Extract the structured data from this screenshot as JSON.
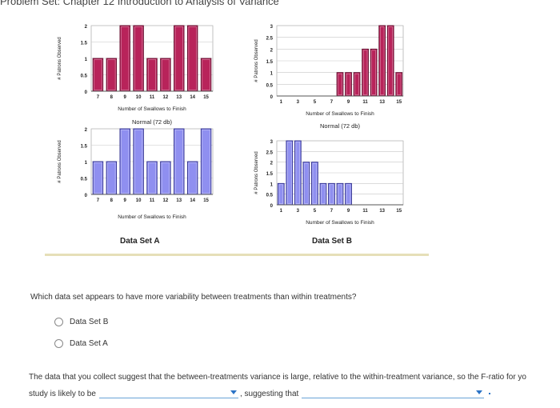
{
  "header": {
    "title": "Problem Set: Chapter 12 Introduction to Analysis of Variance"
  },
  "chart_data": [
    {
      "id": "a-skewed",
      "type": "bar",
      "x": [
        7,
        8,
        9,
        10,
        11,
        12,
        13,
        14,
        15
      ],
      "values": [
        1,
        1,
        2,
        2,
        1,
        1,
        2,
        2,
        1
      ],
      "xticks": [
        "7",
        "8",
        "9",
        "10",
        "11",
        "12",
        "13",
        "14",
        "15"
      ],
      "yticks": [
        "0",
        "0.5",
        "1",
        "1.5",
        "2"
      ],
      "ylim": [
        0,
        2
      ],
      "xlabel": "Number of Swallows to Finish",
      "ylabel": "# Patrons Observed",
      "title": "Normal (72 db)",
      "bar_color": "#b8235a",
      "bar_stroke": "#5e0a2a"
    },
    {
      "id": "b-skewed",
      "type": "bar",
      "x": [
        1,
        2,
        3,
        4,
        5,
        6,
        7,
        8,
        9,
        10,
        11,
        12,
        13,
        14,
        15
      ],
      "values": [
        0,
        0,
        0,
        0,
        0,
        0,
        0,
        1,
        1,
        1,
        2,
        2,
        3,
        3,
        1
      ],
      "xticks": [
        "1",
        "3",
        "5",
        "7",
        "9",
        "11",
        "13",
        "15"
      ],
      "yticks": [
        "0",
        "0.5",
        "1",
        "1.5",
        "2",
        "2.5",
        "3"
      ],
      "ylim": [
        0,
        3
      ],
      "xlabel": "Number of Swallows to Finish",
      "ylabel": "# Patrons Observed",
      "title": "Normal (72 db)",
      "bar_color": "#b8235a",
      "bar_stroke": "#5e0a2a"
    },
    {
      "id": "a-loud",
      "type": "bar",
      "x": [
        7,
        8,
        9,
        10,
        11,
        12,
        13,
        14,
        15
      ],
      "values": [
        1,
        1,
        2,
        2,
        1,
        1,
        2,
        1,
        2
      ],
      "xticks": [
        "7",
        "8",
        "9",
        "10",
        "11",
        "12",
        "13",
        "14",
        "15"
      ],
      "yticks": [
        "0",
        "0.5",
        "1",
        "1.5",
        "2"
      ],
      "ylim": [
        0,
        2
      ],
      "xlabel": "Number of Swallows to Finish",
      "ylabel": "# Patrons Observed",
      "title": "",
      "bar_color": "#8f8ff0",
      "bar_stroke": "#2a2a8a"
    },
    {
      "id": "b-loud",
      "type": "bar",
      "x": [
        1,
        2,
        3,
        4,
        5,
        6,
        7,
        8,
        9,
        10,
        11,
        12,
        13,
        14,
        15
      ],
      "values": [
        1,
        3,
        3,
        2,
        2,
        1,
        1,
        1,
        1,
        0,
        0,
        0,
        0,
        0,
        0
      ],
      "xticks": [
        "1",
        "3",
        "5",
        "7",
        "9",
        "11",
        "13",
        "15"
      ],
      "yticks": [
        "0",
        "0.5",
        "1",
        "1.5",
        "2",
        "2.5",
        "3"
      ],
      "ylim": [
        0,
        3
      ],
      "xlabel": "Number of Swallows to Finish",
      "ylabel": "# Patrons Observed",
      "title": "",
      "bar_color": "#8f8ff0",
      "bar_stroke": "#2a2a8a"
    }
  ],
  "datasets": {
    "a_label": "Data Set A",
    "b_label": "Data Set B"
  },
  "question": {
    "text": "Which data set appears to have more variability between treatments than within treatments?",
    "options": [
      "Data Set B",
      "Data Set A"
    ]
  },
  "statement": {
    "line1": "The data that you collect suggest that the between-treatments variance is large, relative to the within-treatment variance, so the F-ratio for yo",
    "line2_prefix": "study is likely to be",
    "line2_middle": ", suggesting that",
    "dropdown1_value": "",
    "dropdown2_value": ""
  },
  "colors": {
    "divider": "#e6dfb8",
    "dropdown_accent": "#2b73c6"
  }
}
